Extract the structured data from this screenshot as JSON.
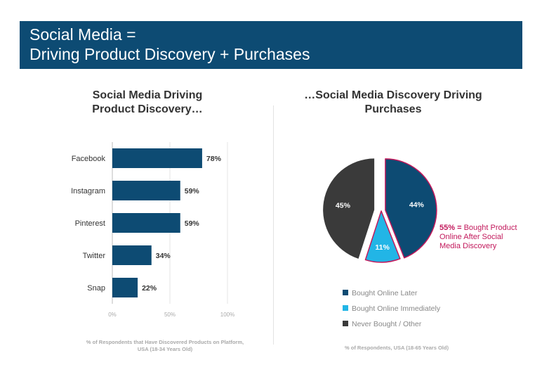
{
  "header": {
    "line1": "Social Media =",
    "line2": "Driving Product Discovery + Purchases"
  },
  "colors": {
    "banner": "#0d4b73",
    "bar": "#0d4b73",
    "pie_later": "#0d4b73",
    "pie_immediately": "#22b5e6",
    "pie_never": "#3a3a3a",
    "highlight": "#c2185b"
  },
  "chart_data": [
    {
      "type": "bar",
      "orientation": "horizontal",
      "title": "Social Media Driving Product Discovery…",
      "categories": [
        "Facebook",
        "Instagram",
        "Pinterest",
        "Twitter",
        "Snap"
      ],
      "values": [
        78,
        59,
        59,
        34,
        22
      ],
      "data_labels": [
        "78%",
        "59%",
        "59%",
        "34%",
        "22%"
      ],
      "xlim": [
        0,
        100
      ],
      "x_ticks": [
        "0%",
        "50%",
        "100%"
      ],
      "grid": true,
      "footnote": "% of Respondents that Have Discovered Products on Platform, USA (18-34 Years Old)"
    },
    {
      "type": "pie",
      "title": "…Social Media Discovery Driving Purchases",
      "slices": [
        {
          "label": "Bought Online Later",
          "value": 44,
          "display": "44%"
        },
        {
          "label": "Bought Online Immediately",
          "value": 11,
          "display": "11%"
        },
        {
          "label": "Never Bought / Other",
          "value": 45,
          "display": "45%"
        }
      ],
      "legend": [
        "Bought Online Later",
        "Bought Online Immediately",
        "Never Bought / Other"
      ],
      "legend_position": "bottom",
      "callout": {
        "percent": "55% = ",
        "text": "Bought Product Online After Social Media Discovery"
      },
      "footnote": "% of Respondents, USA (18-65 Years Old)"
    }
  ]
}
